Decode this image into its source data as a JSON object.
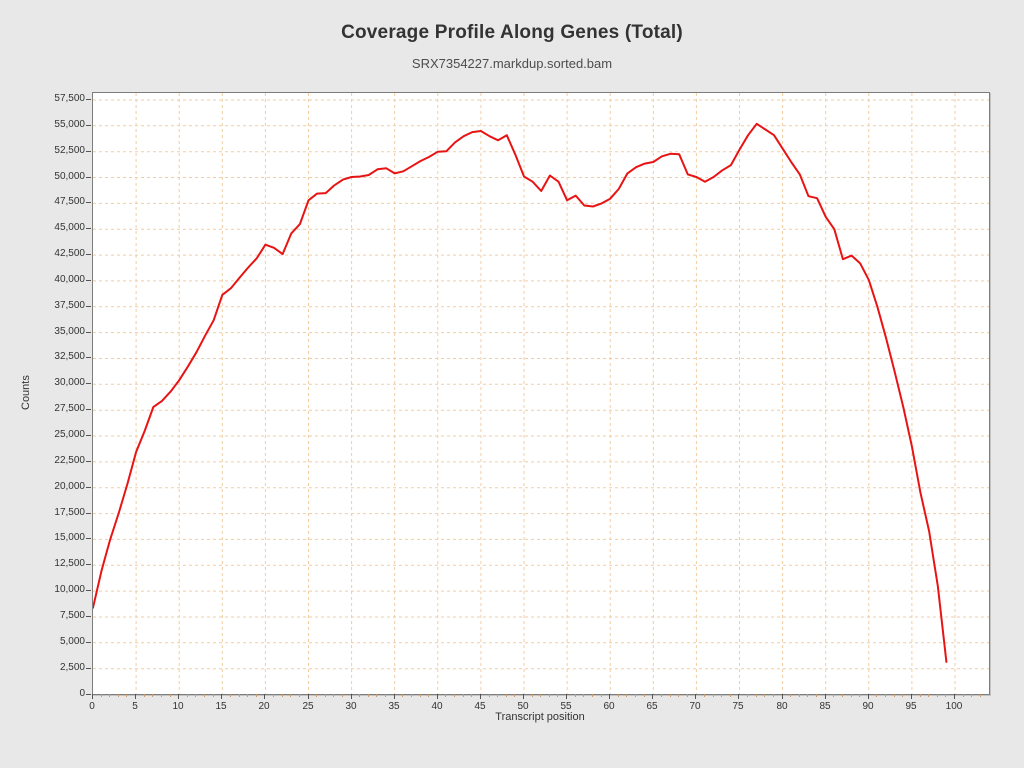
{
  "header": {
    "title": "Coverage Profile Along Genes (Total)",
    "subtitle": "SRX7354227.markdup.sorted.bam"
  },
  "chart_data": {
    "type": "line",
    "title": "Coverage Profile Along Genes (Total)",
    "subtitle": "SRX7354227.markdup.sorted.bam",
    "xlabel": "Transcript position",
    "ylabel": "Counts",
    "legend": "none",
    "grid": true,
    "xlim": [
      0,
      104
    ],
    "ylim": [
      0,
      58200
    ],
    "x_ticks": [
      0,
      5,
      10,
      15,
      20,
      25,
      30,
      35,
      40,
      45,
      50,
      55,
      60,
      65,
      70,
      75,
      80,
      85,
      90,
      95,
      100
    ],
    "y_ticks": [
      0,
      2500,
      5000,
      7500,
      10000,
      12500,
      15000,
      17500,
      20000,
      22500,
      25000,
      27500,
      30000,
      32500,
      35000,
      37500,
      40000,
      42500,
      45000,
      47500,
      50000,
      52500,
      55000,
      57500
    ],
    "x": [
      0,
      1,
      2,
      3,
      4,
      5,
      6,
      7,
      8,
      9,
      10,
      11,
      12,
      13,
      14,
      15,
      16,
      17,
      18,
      19,
      20,
      21,
      22,
      23,
      24,
      25,
      26,
      27,
      28,
      29,
      30,
      31,
      32,
      33,
      34,
      35,
      36,
      37,
      38,
      39,
      40,
      41,
      42,
      43,
      44,
      45,
      46,
      47,
      48,
      49,
      50,
      51,
      52,
      53,
      54,
      55,
      56,
      57,
      58,
      59,
      60,
      61,
      62,
      63,
      64,
      65,
      66,
      67,
      68,
      69,
      70,
      71,
      72,
      73,
      74,
      75,
      76,
      77,
      78,
      79,
      80,
      81,
      82,
      83,
      84,
      85,
      86,
      87,
      88,
      89,
      90,
      91,
      92,
      93,
      94,
      95,
      96,
      97,
      98,
      99
    ],
    "values": [
      8400,
      12000,
      15000,
      17600,
      20400,
      23450,
      25500,
      27800,
      28400,
      29300,
      30400,
      31700,
      33100,
      34700,
      36200,
      38650,
      39300,
      40300,
      41300,
      42200,
      43500,
      43200,
      42600,
      44600,
      45500,
      47800,
      48450,
      48500,
      49250,
      49800,
      50050,
      50100,
      50250,
      50800,
      50900,
      50400,
      50600,
      51100,
      51600,
      52000,
      52500,
      52550,
      53400,
      54000,
      54400,
      54500,
      54000,
      53600,
      54100,
      52200,
      50100,
      49600,
      48700,
      50200,
      49600,
      47800,
      48250,
      47300,
      47200,
      47500,
      47950,
      48900,
      50400,
      51000,
      51350,
      51500,
      52050,
      52300,
      52250,
      50300,
      50050,
      49600,
      50050,
      50700,
      51200,
      52700,
      54100,
      55200,
      54650,
      54100,
      52800,
      51500,
      50300,
      48200,
      48000,
      46200,
      45000,
      42100,
      42450,
      41700,
      40100,
      37500,
      34500,
      31200,
      27800,
      24000,
      19500,
      15800,
      10500,
      3150
    ],
    "colors": {
      "series": "#e81414",
      "grid": "#f2cda2",
      "background": "#e8e8e8",
      "plot_background": "#ffffff",
      "border": "#7d7d7d",
      "tick": "#555555",
      "minor_tick": "#c89a6b",
      "text": "#333333"
    }
  }
}
